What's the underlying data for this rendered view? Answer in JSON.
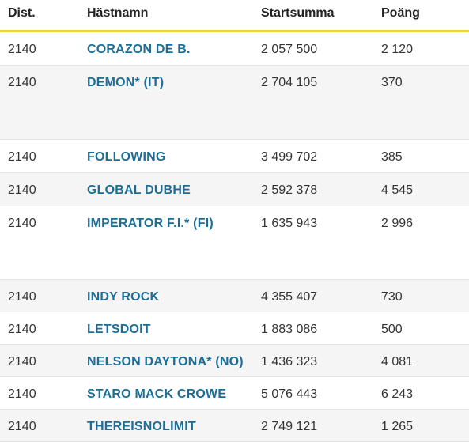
{
  "header": {
    "dist": "Dist.",
    "name": "Hästnamn",
    "startsumma": "Startsumma",
    "poang": "Poäng"
  },
  "rows": [
    {
      "dist": "2140",
      "name": "CORAZON DE B.",
      "startsumma": "2 057 500",
      "poang": "2 120"
    },
    {
      "dist": "2140",
      "name": "DEMON* (IT)",
      "startsumma": "2 704 105",
      "poang": "370"
    },
    {
      "dist": "2140",
      "name": "FOLLOWING",
      "startsumma": "3 499 702",
      "poang": "385"
    },
    {
      "dist": "2140",
      "name": "GLOBAL DUBHE",
      "startsumma": "2 592 378",
      "poang": "4 545"
    },
    {
      "dist": "2140",
      "name": "IMPERATOR F.I.* (FI)",
      "startsumma": "1 635 943",
      "poang": "2 996"
    },
    {
      "dist": "2140",
      "name": "INDY ROCK",
      "startsumma": "4 355 407",
      "poang": "730"
    },
    {
      "dist": "2140",
      "name": "LETSDOIT",
      "startsumma": "1 883 086",
      "poang": "500"
    },
    {
      "dist": "2140",
      "name": "NELSON DAYTONA* (NO)",
      "startsumma": "1 436 323",
      "poang": "4 081"
    },
    {
      "dist": "2140",
      "name": "STARO MACK CROWE",
      "startsumma": "5 076 443",
      "poang": "6 243"
    },
    {
      "dist": "2140",
      "name": "THEREISNOLIMIT",
      "startsumma": "2 749 121",
      "poang": "1 265"
    }
  ]
}
